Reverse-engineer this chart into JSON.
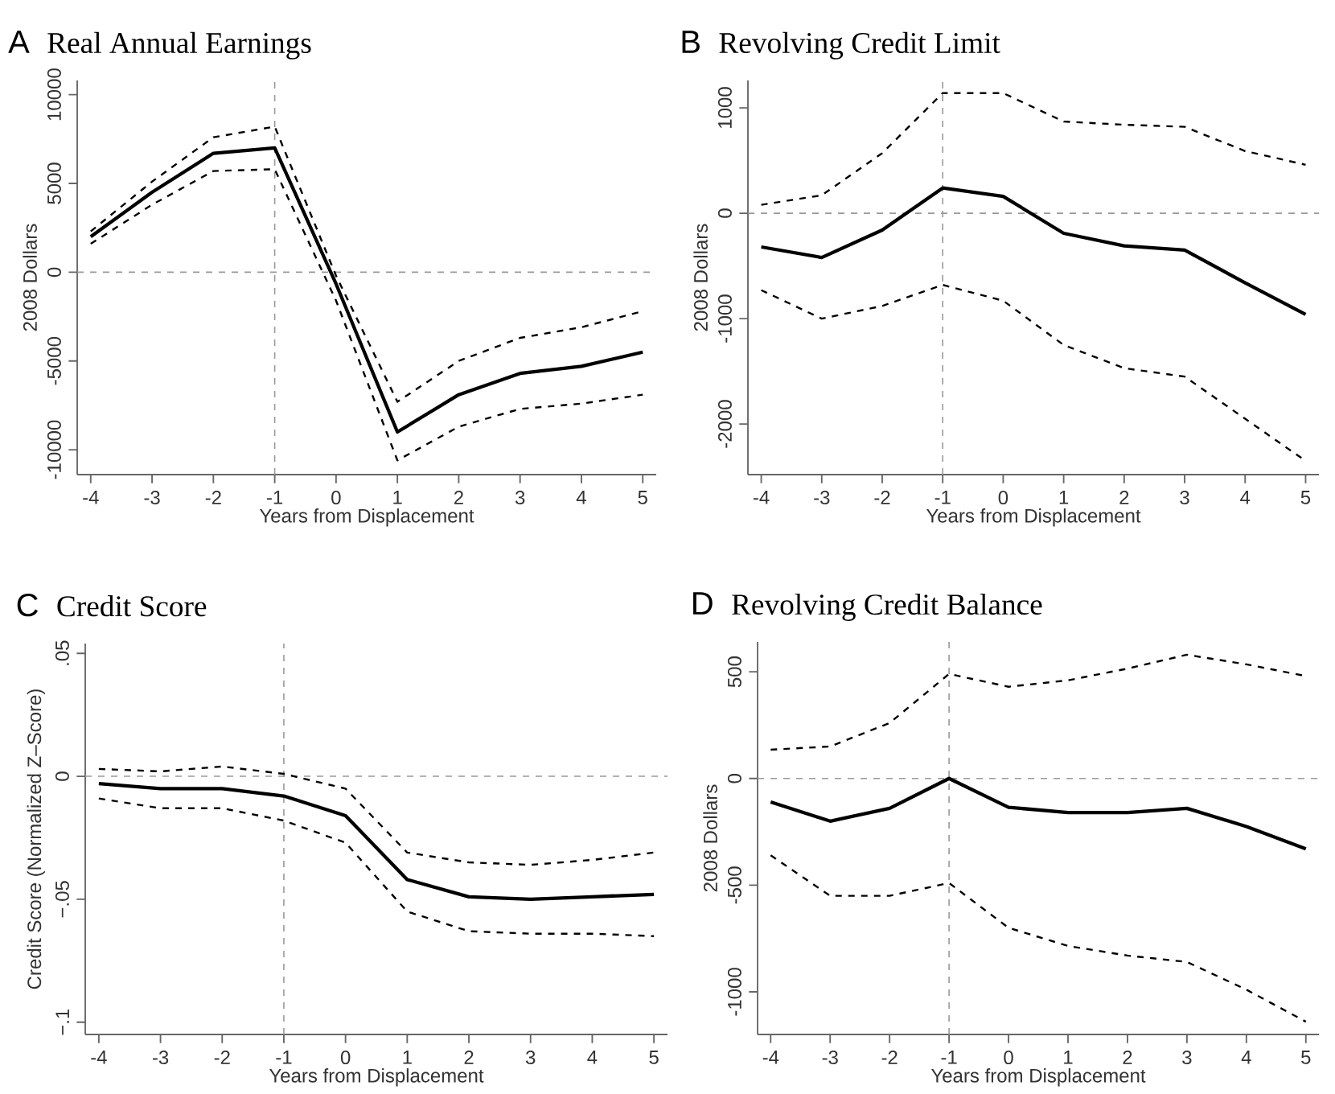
{
  "chart_data": [
    {
      "type": "line",
      "title": "Real Annual Earnings",
      "annotations": [
        "A"
      ],
      "xlabel": "Years from Displacement",
      "ylabel": "2008 Dollars",
      "x": [
        -4,
        -3,
        -2,
        -1,
        0,
        1,
        2,
        3,
        4,
        5
      ],
      "series": [
        {
          "color": "#000000",
          "line_style": "solid",
          "values": [
            2000,
            4500,
            6700,
            7000,
            -660,
            -9000,
            -6900,
            -5700,
            -5300,
            -4500
          ]
        },
        {
          "color": "#000000",
          "line_style": "dashed",
          "values": [
            2300,
            5100,
            7600,
            8200,
            -200,
            -7300,
            -5000,
            -3700,
            -3100,
            -2200
          ]
        },
        {
          "color": "#000000",
          "line_style": "dashed",
          "values": [
            1600,
            3800,
            5700,
            5800,
            -1600,
            -10600,
            -8700,
            -7700,
            -7400,
            -6900
          ]
        }
      ],
      "xlim": [
        -4.22,
        5.22
      ],
      "xticks": [
        -4,
        -3,
        -2,
        -1,
        0,
        1,
        2,
        3,
        4,
        5
      ],
      "ylim": [
        -11400,
        10800
      ],
      "yticks": [
        -10000,
        -5000,
        0,
        5000,
        10000
      ],
      "ref_lines": [
        {
          "axis": "x",
          "value": -1,
          "color": "#999999",
          "line_style": "dashed"
        },
        {
          "axis": "y",
          "value": 0,
          "color": "#999999",
          "line_style": "dashed"
        }
      ]
    },
    {
      "type": "line",
      "title": "Revolving Credit Limit",
      "annotations": [
        "B"
      ],
      "xlabel": "Years from Displacement",
      "ylabel": "2008 Dollars",
      "x": [
        -4,
        -3,
        -2,
        -1,
        0,
        1,
        2,
        3,
        4,
        5
      ],
      "series": [
        {
          "color": "#000000",
          "line_style": "solid",
          "values": [
            -320,
            -420,
            -160,
            240,
            160,
            -190,
            -310,
            -350,
            -660,
            -960
          ]
        },
        {
          "color": "#000000",
          "line_style": "dashed",
          "values": [
            80,
            170,
            570,
            1140,
            1140,
            870,
            840,
            820,
            590,
            460
          ]
        },
        {
          "color": "#000000",
          "line_style": "dashed",
          "values": [
            -730,
            -1000,
            -880,
            -680,
            -830,
            -1250,
            -1470,
            -1550,
            -1950,
            -2350
          ]
        }
      ],
      "xlim": [
        -4.22,
        5.22
      ],
      "xticks": [
        -4,
        -3,
        -2,
        -1,
        0,
        1,
        2,
        3,
        4,
        5
      ],
      "ylim": [
        -2480,
        1260
      ],
      "yticks": [
        -2000,
        -1000,
        0,
        1000
      ],
      "ref_lines": [
        {
          "axis": "x",
          "value": -1,
          "color": "#999999",
          "line_style": "dashed"
        },
        {
          "axis": "y",
          "value": 0,
          "color": "#999999",
          "line_style": "dashed"
        }
      ]
    },
    {
      "type": "line",
      "title": "Credit Score",
      "annotations": [
        "C"
      ],
      "xlabel": "Years from Displacement",
      "ylabel": "Credit Score (Normalized Z–Score)",
      "x": [
        -4,
        -3,
        -2,
        -1,
        0,
        1,
        2,
        3,
        4,
        5
      ],
      "series": [
        {
          "color": "#000000",
          "line_style": "solid",
          "values": [
            -0.003,
            -0.005,
            -0.005,
            -0.008,
            -0.016,
            -0.042,
            -0.049,
            -0.05,
            -0.049,
            -0.048
          ]
        },
        {
          "color": "#000000",
          "line_style": "dashed",
          "values": [
            0.003,
            0.002,
            0.004,
            0.001,
            -0.005,
            -0.031,
            -0.035,
            -0.036,
            -0.034,
            -0.031
          ]
        },
        {
          "color": "#000000",
          "line_style": "dashed",
          "values": [
            -0.009,
            -0.013,
            -0.013,
            -0.018,
            -0.027,
            -0.055,
            -0.063,
            -0.064,
            -0.064,
            -0.065
          ]
        }
      ],
      "xlim": [
        -4.22,
        5.22
      ],
      "xticks": [
        -4,
        -3,
        -2,
        -1,
        0,
        1,
        2,
        3,
        4,
        5
      ],
      "ylim": [
        -0.105,
        0.054
      ],
      "yticks": [
        {
          "value": -0.1,
          "label": "−.1"
        },
        {
          "value": -0.05,
          "label": "−.05"
        },
        0,
        {
          "value": 0.05,
          "label": ".05"
        }
      ],
      "ref_lines": [
        {
          "axis": "x",
          "value": -1,
          "color": "#999999",
          "line_style": "dashed"
        },
        {
          "axis": "y",
          "value": 0,
          "color": "#999999",
          "line_style": "dashed"
        }
      ]
    },
    {
      "type": "line",
      "title": "Revolving Credit Balance",
      "annotations": [
        "D"
      ],
      "xlabel": "Years from Displacement",
      "ylabel": "2008 Dollars",
      "x": [
        -4,
        -3,
        -2,
        -1,
        0,
        1,
        2,
        3,
        4,
        5
      ],
      "series": [
        {
          "color": "#000000",
          "line_style": "solid",
          "values": [
            -110,
            -200,
            -140,
            0,
            -135,
            -160,
            -160,
            -140,
            -225,
            -330
          ]
        },
        {
          "color": "#000000",
          "line_style": "dashed",
          "values": [
            135,
            150,
            260,
            490,
            430,
            460,
            515,
            580,
            535,
            480
          ]
        },
        {
          "color": "#000000",
          "line_style": "dashed",
          "values": [
            -360,
            -550,
            -550,
            -490,
            -700,
            -785,
            -830,
            -860,
            -990,
            -1140
          ]
        }
      ],
      "xlim": [
        -4.22,
        5.22
      ],
      "xticks": [
        -4,
        -3,
        -2,
        -1,
        0,
        1,
        2,
        3,
        4,
        5
      ],
      "ylim": [
        -1200,
        640
      ],
      "yticks": [
        -1000,
        -500,
        0,
        500
      ],
      "ref_lines": [
        {
          "axis": "x",
          "value": -1,
          "color": "#999999",
          "line_style": "dashed"
        },
        {
          "axis": "y",
          "value": 0,
          "color": "#999999",
          "line_style": "dashed"
        }
      ]
    }
  ]
}
